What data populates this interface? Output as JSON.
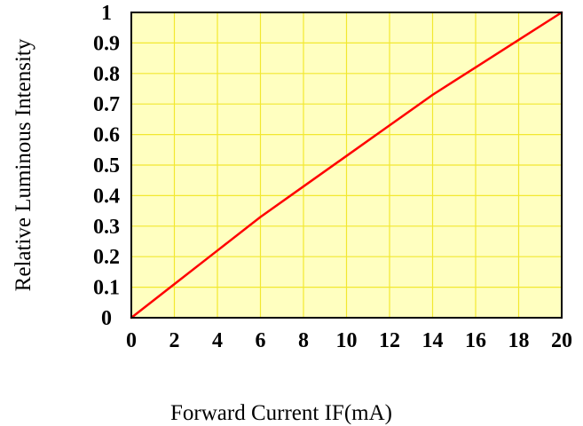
{
  "chart_data": {
    "type": "line",
    "title": "",
    "xlabel": "Forward Current IF(mA)",
    "ylabel": "Relative Luminous Intensity",
    "xlim": [
      0,
      20
    ],
    "ylim": [
      0,
      1
    ],
    "x_ticks": [
      "0",
      "2",
      "4",
      "6",
      "8",
      "10",
      "12",
      "14",
      "16",
      "18",
      "20"
    ],
    "y_ticks": [
      "0",
      "0.1",
      "0.2",
      "0.3",
      "0.4",
      "0.5",
      "0.6",
      "0.7",
      "0.8",
      "0.9",
      "1"
    ],
    "grid": true,
    "legend": "none",
    "colors": {
      "plot_background": "#ffffc0",
      "grid": "#f2e830",
      "line": "#ff0000",
      "frame": "#000000"
    },
    "series": [
      {
        "x": [
          0,
          2,
          4,
          6,
          8,
          10,
          12,
          14,
          16,
          18,
          20
        ],
        "values": [
          0,
          0.11,
          0.22,
          0.33,
          0.43,
          0.53,
          0.63,
          0.73,
          0.82,
          0.91,
          1.0
        ]
      }
    ]
  }
}
